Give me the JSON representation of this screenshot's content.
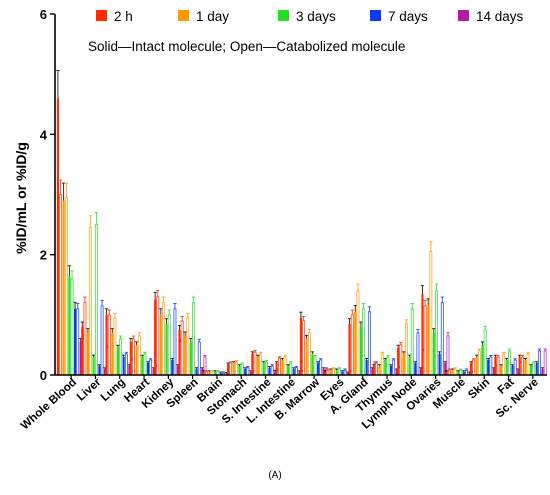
{
  "chart_data": {
    "type": "bar",
    "panel_label": "(A)",
    "ylabel": "%ID/mL or %ID/g",
    "xlabel": "",
    "ylim": [
      0,
      6
    ],
    "yticks": [
      0,
      2,
      4,
      6
    ],
    "annotation": "Solid—Intact molecule; Open—Catabolized molecule",
    "legend_position": "top",
    "categories": [
      "Whole Blood",
      "Liver",
      "Lung",
      "Heart",
      "Kidney",
      "Spleen",
      "Brain",
      "Stomach",
      "S. Intestine",
      "L. Intestine",
      "B. Marrow",
      "Eyes",
      "A. Gland",
      "Thymus",
      "Lymph Node",
      "Ovaries",
      "Muscle",
      "Skin",
      "Fat",
      "Sc. Nerve"
    ],
    "series": [
      {
        "name": "2 h",
        "color": "#ff2a00",
        "intact": [
          4.6,
          0.8,
          1.0,
          0.55,
          1.25,
          0.75,
          0.05,
          0.18,
          0.35,
          0.2,
          0.95,
          0.05,
          0.85,
          0.15,
          0.45,
          1.35,
          0.05,
          0.2,
          0.3,
          0.3
        ],
        "catabolized": [
          3.0,
          1.2,
          1.0,
          0.6,
          1.3,
          0.9,
          0.05,
          0.2,
          0.38,
          0.28,
          0.9,
          0.08,
          1.0,
          0.2,
          0.5,
          1.15,
          0.08,
          0.25,
          0.3,
          0.3
        ]
      },
      {
        "name": "1 day",
        "color": "#ff9900",
        "intact": [
          2.9,
          0.7,
          0.7,
          0.5,
          1.0,
          0.65,
          0.05,
          0.2,
          0.3,
          0.25,
          0.6,
          0.08,
          1.05,
          0.15,
          0.35,
          1.15,
          0.08,
          0.3,
          0.15,
          0.25
        ],
        "catabolized": [
          2.95,
          2.45,
          0.95,
          0.65,
          1.2,
          0.95,
          0.05,
          0.22,
          0.35,
          0.3,
          0.7,
          0.1,
          1.4,
          0.35,
          0.85,
          2.05,
          0.1,
          0.4,
          0.35,
          0.35
        ]
      },
      {
        "name": "3 days",
        "color": "#22e022",
        "intact": [
          1.65,
          0.3,
          0.45,
          0.3,
          0.85,
          0.55,
          0.05,
          0.15,
          0.2,
          0.15,
          0.35,
          0.08,
          0.8,
          0.25,
          0.3,
          0.7,
          0.05,
          0.5,
          0.25,
          0.15
        ],
        "catabolized": [
          1.6,
          2.5,
          0.6,
          0.35,
          1.0,
          1.2,
          0.05,
          0.18,
          0.22,
          0.2,
          0.3,
          0.1,
          1.1,
          0.3,
          1.1,
          1.4,
          0.08,
          0.75,
          0.4,
          0.2
        ]
      },
      {
        "name": "7 days",
        "color": "#0a3cf0",
        "intact": [
          1.1,
          0.15,
          0.3,
          0.2,
          0.25,
          0.1,
          0.03,
          0.1,
          0.12,
          0.1,
          0.2,
          0.05,
          0.25,
          0.15,
          0.2,
          0.35,
          0.05,
          0.25,
          0.15,
          0.2
        ],
        "catabolized": [
          1.1,
          1.15,
          0.35,
          0.25,
          1.1,
          0.55,
          0.03,
          0.12,
          0.15,
          0.12,
          0.25,
          0.08,
          1.05,
          0.25,
          0.7,
          1.2,
          0.08,
          0.3,
          0.25,
          0.4
        ]
      },
      {
        "name": "14 days",
        "color": "#b31aa8",
        "intact": [
          0.55,
          0.1,
          0.15,
          0.1,
          0.15,
          0.1,
          0.02,
          0.05,
          0.06,
          0.05,
          0.1,
          0.03,
          0.1,
          0.08,
          0.1,
          0.2,
          0.03,
          0.1,
          0.08,
          0.1
        ],
        "catabolized": [
          0.6,
          0.45,
          0.25,
          0.15,
          0.55,
          0.3,
          0.02,
          0.06,
          0.08,
          0.06,
          0.1,
          0.05,
          0.2,
          0.12,
          0.4,
          0.65,
          0.04,
          0.15,
          0.2,
          0.4
        ]
      }
    ]
  }
}
